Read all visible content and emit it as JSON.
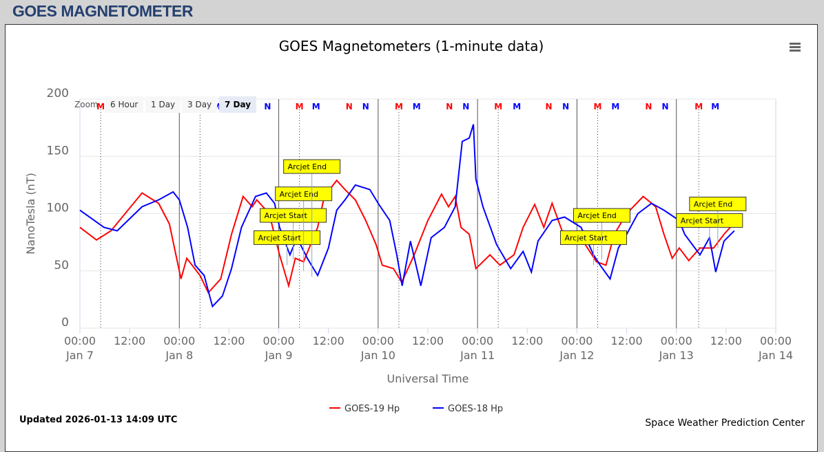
{
  "header": {
    "title": "GOES MAGNETOMETER"
  },
  "zoom": {
    "label": "Zoom",
    "buttons": [
      "6 Hour",
      "1 Day",
      "3 Day",
      "7 Day"
    ],
    "selected": "7 Day"
  },
  "menu_icon": "hamburger-icon",
  "footer": {
    "updated": "Updated 2026-01-13 14:09 UTC",
    "credit": "Space Weather Prediction Center"
  },
  "chart_data": {
    "type": "line",
    "title": "GOES Magnetometers (1-minute data)",
    "xlabel": "Universal Time",
    "ylabel": "NanoTesla (nT)",
    "ylim": [
      0,
      200
    ],
    "yticks": [
      0,
      50,
      100,
      150,
      200
    ],
    "xlim_hours_from_jan7": [
      0,
      168
    ],
    "xticks": [
      {
        "h": 0,
        "t": "00:00",
        "d": "Jan 7"
      },
      {
        "h": 12,
        "t": "12:00",
        "d": ""
      },
      {
        "h": 24,
        "t": "00:00",
        "d": "Jan 8"
      },
      {
        "h": 36,
        "t": "12:00",
        "d": ""
      },
      {
        "h": 48,
        "t": "00:00",
        "d": "Jan 9"
      },
      {
        "h": 60,
        "t": "12:00",
        "d": ""
      },
      {
        "h": 72,
        "t": "00:00",
        "d": "Jan 10"
      },
      {
        "h": 84,
        "t": "12:00",
        "d": ""
      },
      {
        "h": 96,
        "t": "00:00",
        "d": "Jan 11"
      },
      {
        "h": 108,
        "t": "12:00",
        "d": ""
      },
      {
        "h": 120,
        "t": "00:00",
        "d": "Jan 12"
      },
      {
        "h": 132,
        "t": "12:00",
        "d": ""
      },
      {
        "h": 144,
        "t": "00:00",
        "d": "Jan 13"
      },
      {
        "h": 156,
        "t": "12:00",
        "d": ""
      },
      {
        "h": 168,
        "t": "00:00",
        "d": "Jan 14"
      }
    ],
    "series": [
      {
        "name": "GOES-19 Hp",
        "color": "#ff0000",
        "points": [
          [
            0,
            88
          ],
          [
            4,
            77
          ],
          [
            7.5,
            85
          ],
          [
            15,
            118
          ],
          [
            19,
            109
          ],
          [
            21.6,
            91
          ],
          [
            24.4,
            43
          ],
          [
            25.8,
            61
          ],
          [
            29,
            46
          ],
          [
            31,
            31
          ],
          [
            34,
            43
          ],
          [
            36.6,
            82
          ],
          [
            39.4,
            115
          ],
          [
            41.6,
            106
          ],
          [
            42.7,
            112
          ],
          [
            45.7,
            100
          ],
          [
            48.2,
            64
          ],
          [
            50.4,
            37
          ],
          [
            52,
            61
          ],
          [
            54,
            58
          ],
          [
            57.4,
            88
          ],
          [
            59,
            115
          ],
          [
            62,
            129
          ],
          [
            64,
            121
          ],
          [
            66.5,
            112
          ],
          [
            69,
            94
          ],
          [
            71.5,
            73
          ],
          [
            73,
            55
          ],
          [
            75.7,
            52
          ],
          [
            77.7,
            40
          ],
          [
            80.7,
            64
          ],
          [
            84,
            94
          ],
          [
            87.3,
            117
          ],
          [
            89,
            106
          ],
          [
            90.6,
            115
          ],
          [
            92,
            88
          ],
          [
            94,
            82
          ],
          [
            95.6,
            52
          ],
          [
            99,
            64
          ],
          [
            101.4,
            55
          ],
          [
            104.8,
            64
          ],
          [
            107,
            88
          ],
          [
            109.8,
            108
          ],
          [
            112,
            88
          ],
          [
            114,
            109
          ],
          [
            116.4,
            85
          ],
          [
            119,
            76
          ],
          [
            122,
            73
          ],
          [
            124.7,
            58
          ],
          [
            127,
            55
          ],
          [
            129,
            82
          ],
          [
            132,
            100
          ],
          [
            136,
            115
          ],
          [
            139,
            106
          ],
          [
            141,
            82
          ],
          [
            143,
            61
          ],
          [
            144.7,
            70
          ],
          [
            147,
            59
          ],
          [
            149.7,
            70
          ],
          [
            153,
            70
          ],
          [
            155.5,
            82
          ],
          [
            158,
            92
          ]
        ]
      },
      {
        "name": "GOES-18 Hp",
        "color": "#0000ff",
        "points": [
          [
            0,
            103
          ],
          [
            5.8,
            88
          ],
          [
            9,
            85
          ],
          [
            15,
            106
          ],
          [
            19,
            112
          ],
          [
            22.5,
            119
          ],
          [
            24,
            112
          ],
          [
            26,
            88
          ],
          [
            27.8,
            55
          ],
          [
            30,
            46
          ],
          [
            32,
            19
          ],
          [
            34.4,
            28
          ],
          [
            36.6,
            52
          ],
          [
            39,
            88
          ],
          [
            42.4,
            115
          ],
          [
            45,
            118
          ],
          [
            47,
            109
          ],
          [
            48.2,
            88
          ],
          [
            50.7,
            64
          ],
          [
            52.4,
            79
          ],
          [
            54.9,
            61
          ],
          [
            57.4,
            46
          ],
          [
            60,
            70
          ],
          [
            62,
            103
          ],
          [
            64,
            112
          ],
          [
            66.5,
            125
          ],
          [
            70,
            121
          ],
          [
            72,
            109
          ],
          [
            74.8,
            94
          ],
          [
            76.5,
            64
          ],
          [
            77.8,
            37
          ],
          [
            79.8,
            76
          ],
          [
            82.3,
            37
          ],
          [
            84.8,
            79
          ],
          [
            88,
            88
          ],
          [
            90.6,
            106
          ],
          [
            92.3,
            163
          ],
          [
            94,
            166
          ],
          [
            95,
            178
          ],
          [
            95.6,
            130
          ],
          [
            97.3,
            106
          ],
          [
            100.6,
            73
          ],
          [
            104,
            52
          ],
          [
            107,
            67
          ],
          [
            109,
            49
          ],
          [
            110.6,
            76
          ],
          [
            114,
            94
          ],
          [
            117,
            97
          ],
          [
            121,
            88
          ],
          [
            124,
            64
          ],
          [
            125.6,
            55
          ],
          [
            128,
            43
          ],
          [
            130,
            70
          ],
          [
            132,
            82
          ],
          [
            134.7,
            100
          ],
          [
            138,
            109
          ],
          [
            141,
            103
          ],
          [
            144.7,
            94
          ],
          [
            146,
            82
          ],
          [
            149.7,
            64
          ],
          [
            152,
            79
          ],
          [
            153.5,
            49
          ],
          [
            155.5,
            76
          ],
          [
            158,
            85
          ]
        ]
      }
    ],
    "markers": [
      {
        "t": "M",
        "color": "#ff0000",
        "hours": [
          5,
          29,
          53,
          77,
          101,
          125,
          149.4
        ]
      },
      {
        "t": "M",
        "color": "#0000ff",
        "hours": [
          9.2,
          33,
          57,
          81.3,
          105.5,
          129.3,
          153.4
        ]
      },
      {
        "t": "N",
        "color": "#ff0000",
        "hours": [
          17,
          41,
          65,
          89.2,
          113.2,
          137.3
        ]
      },
      {
        "t": "N",
        "color": "#0000ff",
        "hours": [
          21,
          45.3,
          69,
          93.2,
          117.3,
          141.3
        ]
      }
    ],
    "annotations": [
      {
        "text": "Arcjet Start",
        "h": 50,
        "v": 55
      },
      {
        "text": "Arcjet Start",
        "h": 51.5,
        "v": 60
      },
      {
        "text": "Arcjet End",
        "h": 54,
        "v": 50
      },
      {
        "text": "Arcjet End",
        "h": 56,
        "v": 45
      },
      {
        "text": "Arcjet Start",
        "h": 124,
        "v": 55
      },
      {
        "text": "Arcjet End",
        "h": 126,
        "v": 60
      },
      {
        "text": "Arcjet Start",
        "h": 152,
        "v": 70
      },
      {
        "text": "Arcjet End",
        "h": 154,
        "v": 70
      }
    ]
  }
}
